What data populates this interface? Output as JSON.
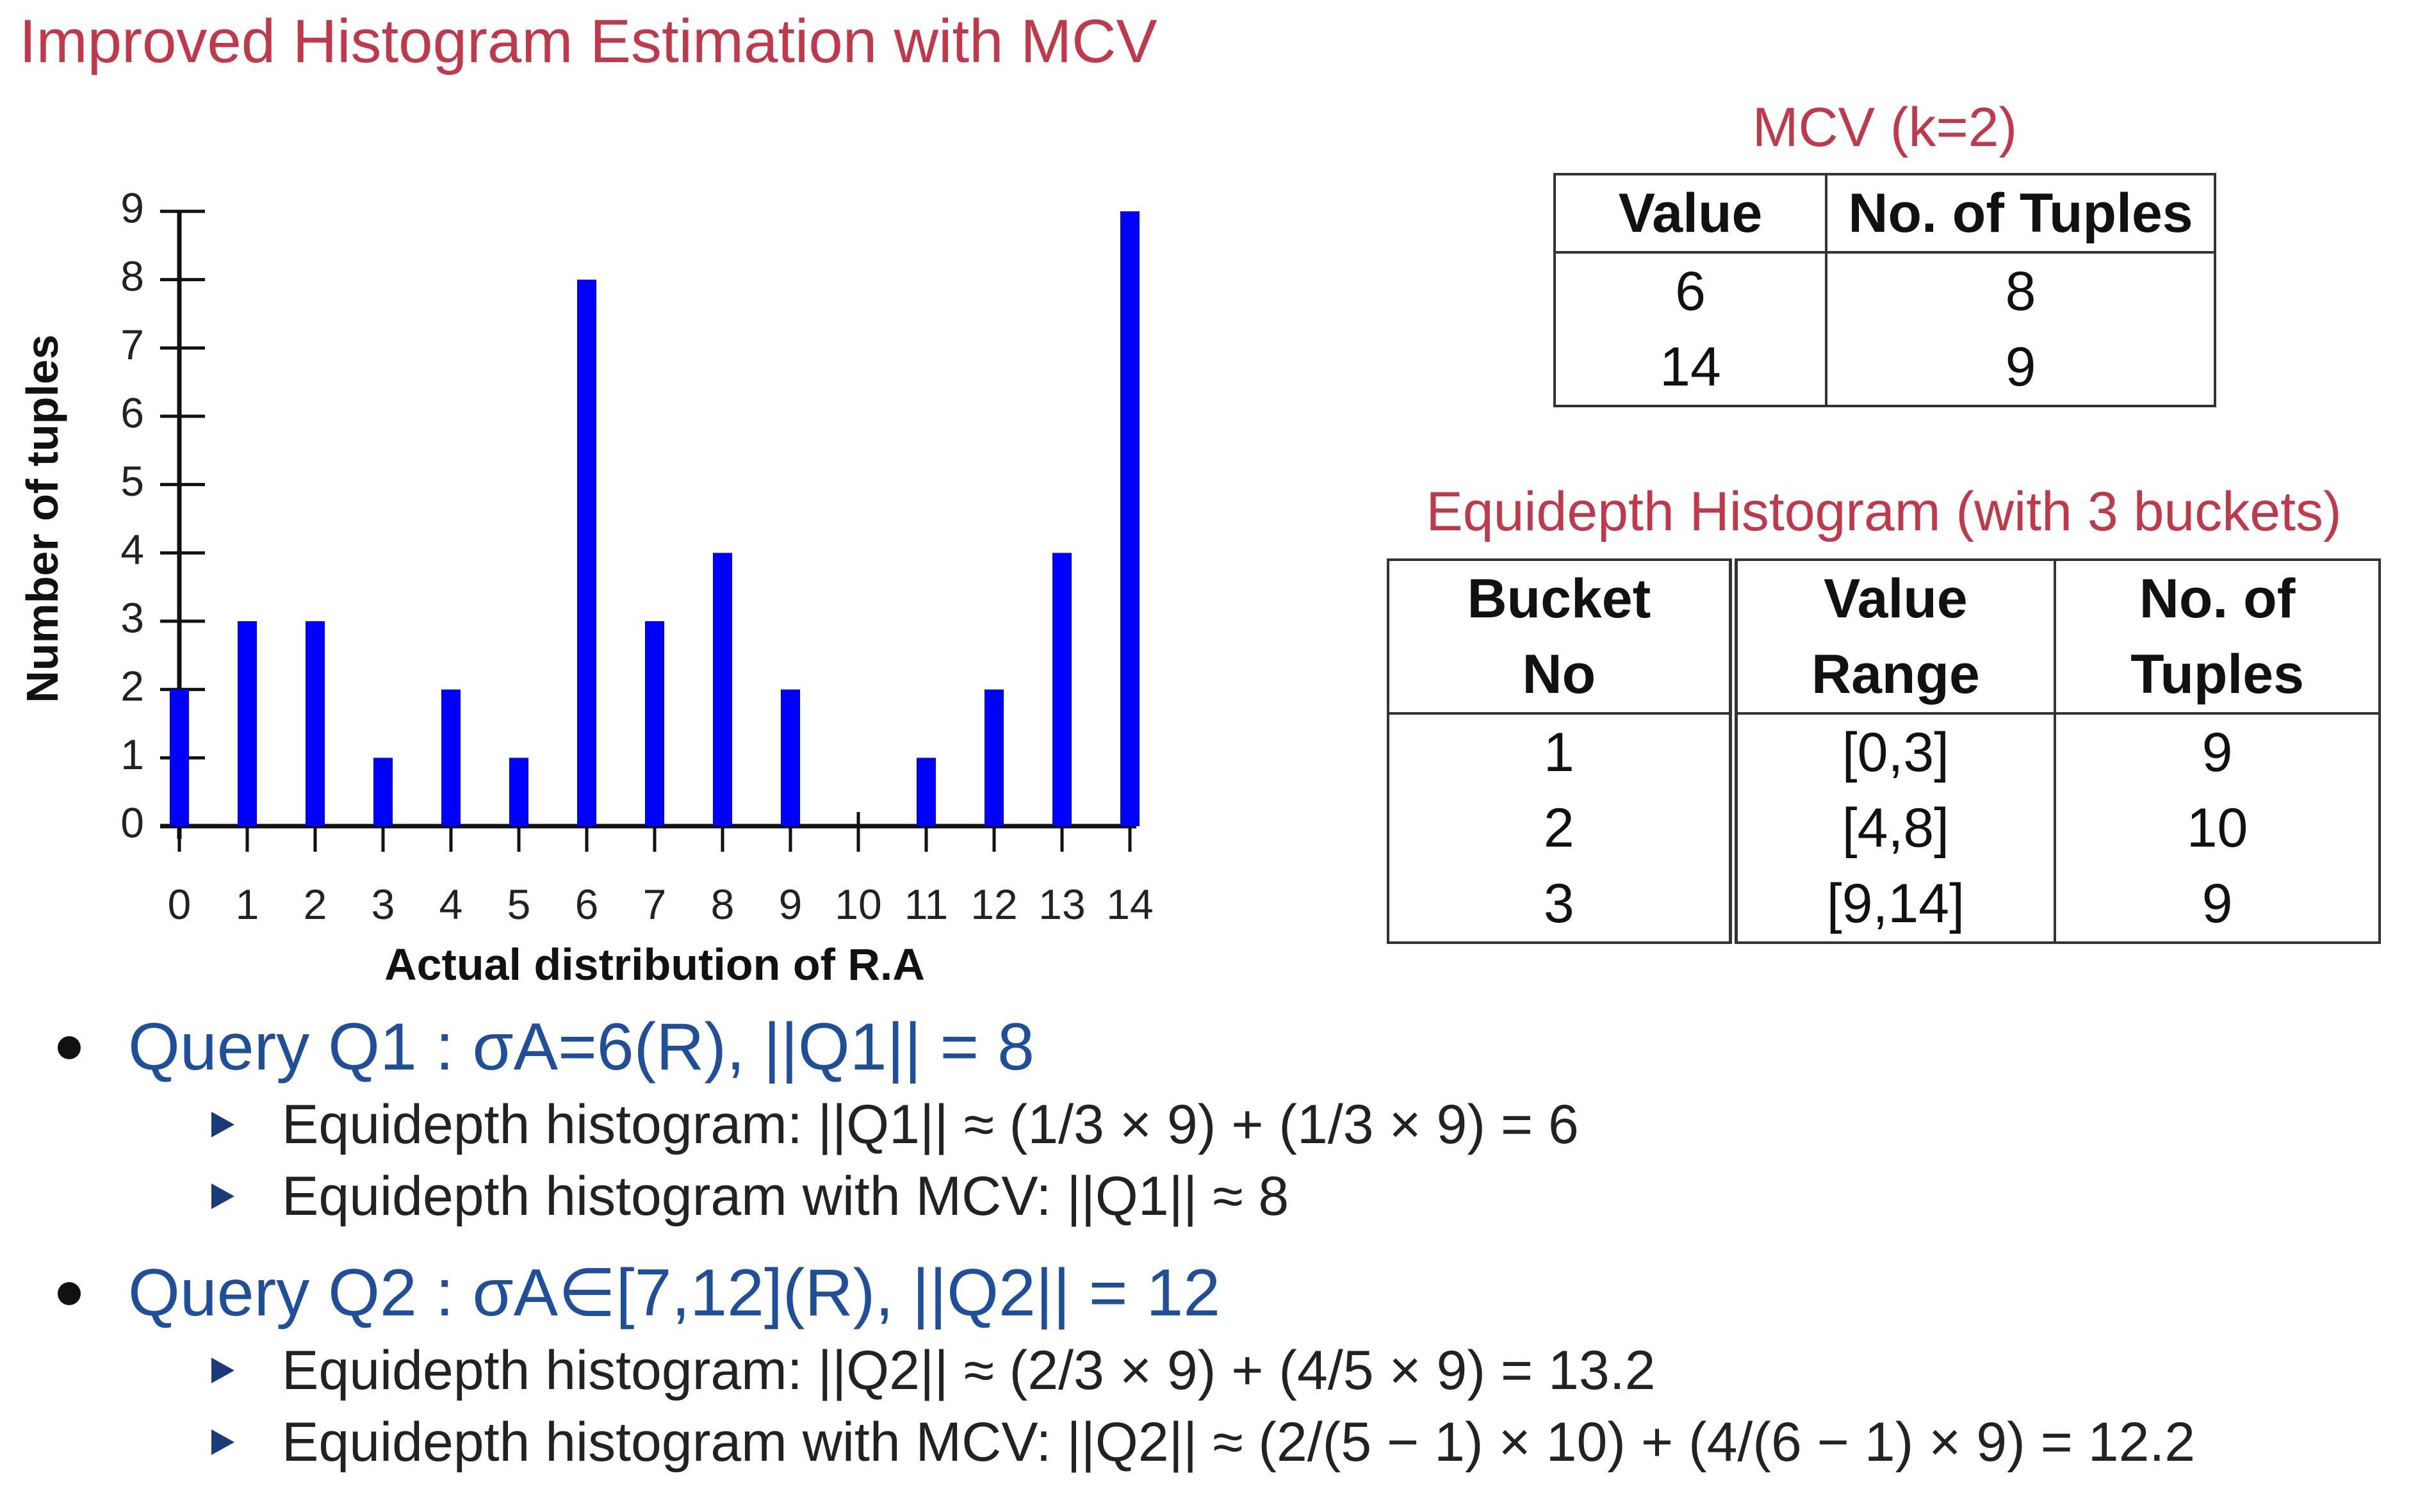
{
  "title": "Improved Histogram Estimation with MCV",
  "chart_data": {
    "type": "bar",
    "categories": [
      "0",
      "1",
      "2",
      "3",
      "4",
      "5",
      "6",
      "7",
      "8",
      "9",
      "10",
      "11",
      "12",
      "13",
      "14"
    ],
    "values": [
      2,
      3,
      3,
      1,
      2,
      1,
      8,
      3,
      4,
      2,
      0,
      1,
      2,
      4,
      9
    ],
    "ylim": [
      0,
      9
    ],
    "yticks": [
      "0",
      "1",
      "2",
      "3",
      "4",
      "5",
      "6",
      "7",
      "8",
      "9"
    ],
    "xlabel": "Actual distribution of R.A",
    "ylabel": "Number of tuples",
    "bar_color": "#0000ff"
  },
  "mcv": {
    "caption": "MCV (k=2)",
    "headers": [
      "Value",
      "No. of Tuples"
    ],
    "rows": [
      [
        "6",
        "8"
      ],
      [
        "14",
        "9"
      ]
    ]
  },
  "equidepth": {
    "caption": "Equidepth Histogram (with 3 buckets)",
    "headers": [
      [
        "Bucket",
        "No"
      ],
      [
        "Value",
        "Range"
      ],
      [
        "No. of",
        "Tuples"
      ]
    ],
    "rows": [
      [
        "1",
        "[0,3]",
        "9"
      ],
      [
        "2",
        "[4,8]",
        "10"
      ],
      [
        "3",
        "[9,14]",
        "9"
      ]
    ]
  },
  "queries": [
    {
      "label": "Query Q1 : σA=6(R), ||Q1|| = 8",
      "items": [
        "Equidepth histogram: ||Q1|| ≈ (1/3 × 9) + (1/3 × 9) = 6",
        "Equidepth histogram with MCV: ||Q1|| ≈ 8"
      ]
    },
    {
      "label": "Query Q2 : σA∈[7,12](R), ||Q2|| = 12",
      "items": [
        "Equidepth histogram: ||Q2|| ≈ (2/3 × 9) + (4/5 × 9) = 13.2",
        "Equidepth histogram with MCV: ||Q2|| ≈ (2/(5 − 1) × 10) + (4/(6 − 1) × 9) = 12.2"
      ]
    }
  ],
  "colors": {
    "title": "#c0394b",
    "query": "#1f4e9a",
    "bar": "#0000ff"
  }
}
